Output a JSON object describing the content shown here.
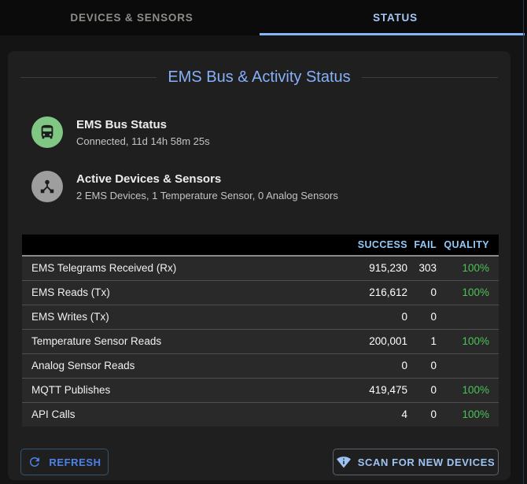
{
  "tabs": [
    {
      "label": "DEVICES & SENSORS",
      "active": false
    },
    {
      "label": "STATUS",
      "active": true
    }
  ],
  "panel": {
    "title": "EMS Bus & Activity Status"
  },
  "status_items": [
    {
      "icon": "bus-icon",
      "icon_bg": "#81c784",
      "title": "EMS Bus Status",
      "subtitle": "Connected, 11d 14h 58m 25s"
    },
    {
      "icon": "device-hub-icon",
      "icon_bg": "#9e9e9e",
      "title": "Active Devices & Sensors",
      "subtitle": "2 EMS Devices, 1 Temperature Sensor, 0 Analog Sensors"
    }
  ],
  "table": {
    "headers": [
      "SUCCESS",
      "FAIL",
      "QUALITY"
    ],
    "rows": [
      {
        "label": "EMS Telegrams Received (Rx)",
        "success": "915,230",
        "fail": "303",
        "quality": "100%"
      },
      {
        "label": "EMS Reads (Tx)",
        "success": "216,612",
        "fail": "0",
        "quality": "100%"
      },
      {
        "label": "EMS Writes (Tx)",
        "success": "0",
        "fail": "0",
        "quality": ""
      },
      {
        "label": "Temperature Sensor Reads",
        "success": "200,001",
        "fail": "1",
        "quality": "100%"
      },
      {
        "label": "Analog Sensor Reads",
        "success": "0",
        "fail": "0",
        "quality": ""
      },
      {
        "label": "MQTT Publishes",
        "success": "419,475",
        "fail": "0",
        "quality": "100%"
      },
      {
        "label": "API Calls",
        "success": "4",
        "fail": "0",
        "quality": "100%"
      }
    ]
  },
  "buttons": {
    "refresh": "REFRESH",
    "scan": "SCAN FOR NEW DEVICES"
  },
  "colors": {
    "accent_blue": "#8ab4f8",
    "table_header_blue": "#90caf9",
    "quality_green": "#4bc356",
    "refresh_blue": "#4d82e8",
    "scan_blue": "#9ec4f2",
    "bus_icon_bg": "#81c784",
    "hub_icon_bg": "#9e9e9e"
  }
}
